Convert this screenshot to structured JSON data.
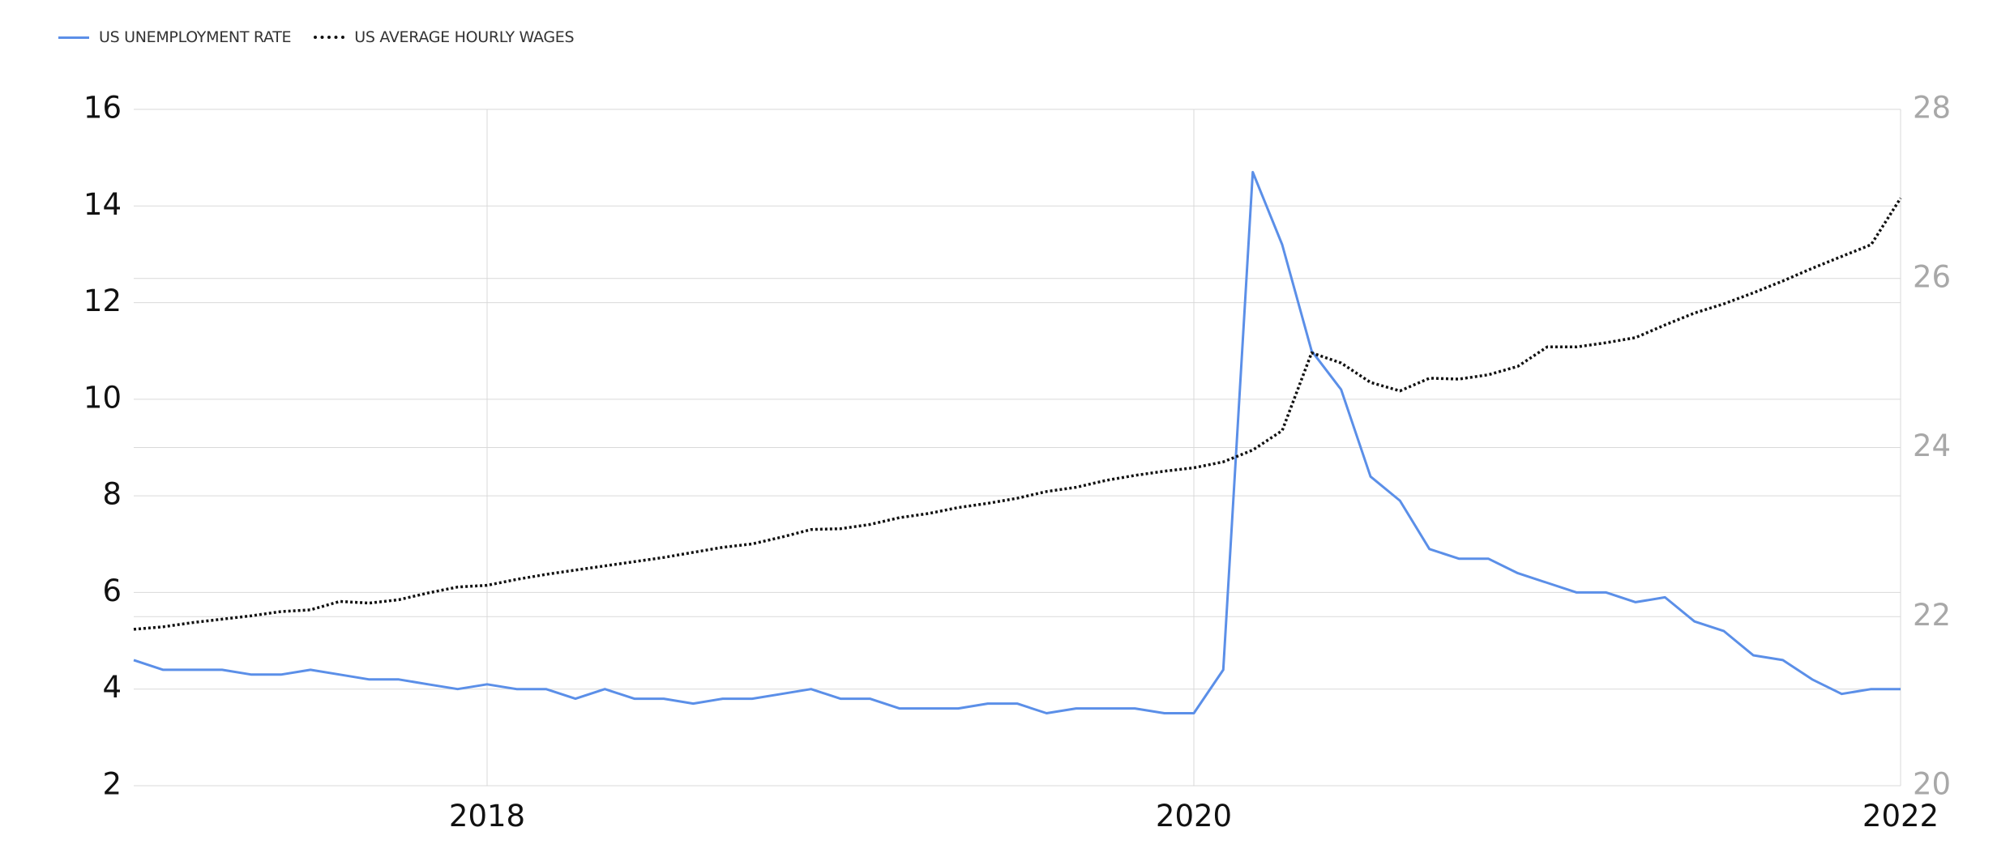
{
  "legend": {
    "unemployment_label": "US UNEMPLOYMENT RATE",
    "wages_label": "US AVERAGE HOURLY WAGES"
  },
  "colors": {
    "unemployment": "#5b8fe8",
    "wages": "#111111",
    "left_axis_text": "#111111",
    "right_axis_text": "#a8a8a8",
    "grid": "#d9d9d9"
  },
  "chart_data": {
    "type": "line",
    "title": "",
    "xlabel": "",
    "ylabel": "",
    "grid": true,
    "legend_position": "top-left",
    "x_ticks": [
      "2018",
      "2020",
      "2022"
    ],
    "x_range": [
      "2017-01",
      "2022-01"
    ],
    "y_left": {
      "range": [
        2,
        16
      ],
      "ticks": [
        2,
        4,
        6,
        8,
        10,
        12,
        14,
        16
      ]
    },
    "y_right": {
      "range": [
        20,
        28
      ],
      "ticks": [
        20,
        22,
        24,
        26,
        28
      ]
    },
    "x": [
      "2017-01",
      "2017-02",
      "2017-03",
      "2017-04",
      "2017-05",
      "2017-06",
      "2017-07",
      "2017-08",
      "2017-09",
      "2017-10",
      "2017-11",
      "2017-12",
      "2018-01",
      "2018-02",
      "2018-03",
      "2018-04",
      "2018-05",
      "2018-06",
      "2018-07",
      "2018-08",
      "2018-09",
      "2018-10",
      "2018-11",
      "2018-12",
      "2019-01",
      "2019-02",
      "2019-03",
      "2019-04",
      "2019-05",
      "2019-06",
      "2019-07",
      "2019-08",
      "2019-09",
      "2019-10",
      "2019-11",
      "2019-12",
      "2020-01",
      "2020-02",
      "2020-03",
      "2020-04",
      "2020-05",
      "2020-06",
      "2020-07",
      "2020-08",
      "2020-09",
      "2020-10",
      "2020-11",
      "2020-12",
      "2021-01",
      "2021-02",
      "2021-03",
      "2021-04",
      "2021-05",
      "2021-06",
      "2021-07",
      "2021-08",
      "2021-09",
      "2021-10",
      "2021-11",
      "2021-12",
      "2022-01"
    ],
    "series": [
      {
        "name": "US UNEMPLOYMENT RATE",
        "axis": "left",
        "style": "solid",
        "values": [
          4.6,
          4.4,
          4.4,
          4.4,
          4.3,
          4.3,
          4.4,
          4.3,
          4.2,
          4.2,
          4.1,
          4.0,
          4.1,
          4.0,
          4.0,
          3.8,
          4.0,
          3.8,
          3.8,
          3.7,
          3.8,
          3.8,
          3.9,
          4.0,
          3.8,
          3.8,
          3.6,
          3.6,
          3.6,
          3.7,
          3.7,
          3.5,
          3.6,
          3.6,
          3.6,
          3.5,
          3.5,
          4.4,
          14.7,
          13.2,
          11.0,
          10.2,
          8.4,
          7.9,
          6.9,
          6.7,
          6.7,
          6.4,
          6.2,
          6.0,
          6.0,
          5.8,
          5.9,
          5.4,
          5.2,
          4.7,
          4.6,
          4.2,
          3.9,
          4.0,
          4.0
        ]
      },
      {
        "name": "US AVERAGE HOURLY WAGES",
        "axis": "right",
        "style": "dotted",
        "values": [
          21.85,
          21.88,
          21.93,
          21.97,
          22.01,
          22.06,
          22.08,
          22.18,
          22.16,
          22.2,
          22.28,
          22.35,
          22.37,
          22.44,
          22.5,
          22.55,
          22.6,
          22.65,
          22.7,
          22.76,
          22.82,
          22.86,
          22.94,
          23.03,
          23.04,
          23.09,
          23.17,
          23.22,
          23.29,
          23.34,
          23.4,
          23.48,
          23.53,
          23.61,
          23.67,
          23.72,
          23.76,
          23.83,
          23.97,
          24.2,
          25.12,
          25.0,
          24.77,
          24.67,
          24.82,
          24.81,
          24.86,
          24.96,
          25.19,
          25.19,
          25.24,
          25.3,
          25.45,
          25.59,
          25.7,
          25.83,
          25.97,
          26.12,
          26.26,
          26.4,
          26.95
        ]
      }
    ]
  }
}
